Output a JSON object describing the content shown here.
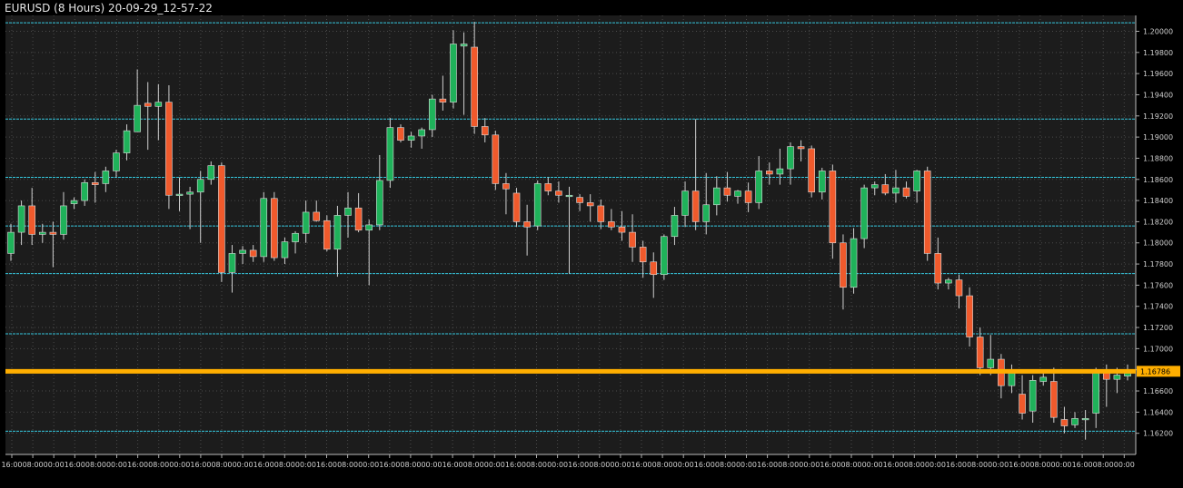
{
  "window": {
    "title": "EURUSD (8 Hours) 20-09-29_12-57-22"
  },
  "colors": {
    "background": "#000000",
    "plot_background": "#1c1c1c",
    "grid": "#4a4a4a",
    "bull": "#1fb25a",
    "bear": "#f05a2c",
    "level_line": "#35c9e0",
    "current_price": "#ffae00"
  },
  "chart_data": {
    "type": "candlestick",
    "title": "EURUSD (8 Hours) 20-09-29_12-57-22",
    "ylim": [
      1.16,
      1.2015
    ],
    "y_ticks": [
      "1.20000",
      "1.19800",
      "1.19600",
      "1.19400",
      "1.19200",
      "1.19000",
      "1.18800",
      "1.18600",
      "1.18400",
      "1.18200",
      "1.18000",
      "1.17800",
      "1.17600",
      "1.17400",
      "1.17200",
      "1.17000",
      "1.16800",
      "1.16600",
      "1.16400",
      "1.16200"
    ],
    "x_ticks": [
      "16:00",
      "08:00",
      "00:00",
      "16:00",
      "08:00",
      "00:00",
      "16:00",
      "08:00",
      "00:00",
      "16:00",
      "08:00",
      "00:00",
      "16:00",
      "08:00",
      "00:00",
      "16:00",
      "08:00",
      "00:00",
      "16:00",
      "08:00",
      "00:00",
      "16:00",
      "08:00",
      "00:00",
      "16:00",
      "08:00",
      "00:00",
      "16:00",
      "08:00",
      "00:00",
      "16:00",
      "08:00",
      "00:00",
      "16:00",
      "08:00",
      "00:00",
      "16:00",
      "08:00",
      "00:00",
      "16:00",
      "08:00",
      "00:00",
      "16:00",
      "08:00",
      "00:00",
      "16:00",
      "08:00",
      "00:00",
      "16:00",
      "08:00",
      "00:00",
      "16:00",
      "08:00",
      "00:00"
    ],
    "horizontal_levels": [
      1.2008,
      1.1917,
      1.1862,
      1.1816,
      1.1771,
      1.1714,
      1.1622
    ],
    "current_price": 1.16786,
    "current_price_label": "1.16786",
    "candles": [
      {
        "o": 1.179,
        "h": 1.1818,
        "l": 1.1783,
        "c": 1.181
      },
      {
        "o": 1.181,
        "h": 1.184,
        "l": 1.1798,
        "c": 1.1835
      },
      {
        "o": 1.1835,
        "h": 1.1852,
        "l": 1.1798,
        "c": 1.1808
      },
      {
        "o": 1.1808,
        "h": 1.1818,
        "l": 1.18,
        "c": 1.181
      },
      {
        "o": 1.181,
        "h": 1.182,
        "l": 1.1777,
        "c": 1.1808
      },
      {
        "o": 1.1808,
        "h": 1.1848,
        "l": 1.1803,
        "c": 1.1835
      },
      {
        "o": 1.1837,
        "h": 1.1843,
        "l": 1.1832,
        "c": 1.184
      },
      {
        "o": 1.184,
        "h": 1.186,
        "l": 1.1835,
        "c": 1.1857
      },
      {
        "o": 1.1857,
        "h": 1.1867,
        "l": 1.1838,
        "c": 1.1855
      },
      {
        "o": 1.1856,
        "h": 1.1872,
        "l": 1.1848,
        "c": 1.1868
      },
      {
        "o": 1.1868,
        "h": 1.1888,
        "l": 1.1862,
        "c": 1.1885
      },
      {
        "o": 1.1885,
        "h": 1.1912,
        "l": 1.1878,
        "c": 1.1906
      },
      {
        "o": 1.1905,
        "h": 1.1964,
        "l": 1.1905,
        "c": 1.193
      },
      {
        "o": 1.1932,
        "h": 1.1952,
        "l": 1.1888,
        "c": 1.1929
      },
      {
        "o": 1.1929,
        "h": 1.195,
        "l": 1.1897,
        "c": 1.1933
      },
      {
        "o": 1.1933,
        "h": 1.1949,
        "l": 1.1832,
        "c": 1.1845
      },
      {
        "o": 1.1845,
        "h": 1.1862,
        "l": 1.183,
        "c": 1.1846
      },
      {
        "o": 1.1846,
        "h": 1.1853,
        "l": 1.1813,
        "c": 1.1848
      },
      {
        "o": 1.1848,
        "h": 1.1868,
        "l": 1.18,
        "c": 1.186
      },
      {
        "o": 1.186,
        "h": 1.1877,
        "l": 1.1855,
        "c": 1.1873
      },
      {
        "o": 1.1873,
        "h": 1.1876,
        "l": 1.1763,
        "c": 1.1772
      },
      {
        "o": 1.1772,
        "h": 1.1798,
        "l": 1.1753,
        "c": 1.179
      },
      {
        "o": 1.179,
        "h": 1.1797,
        "l": 1.178,
        "c": 1.1793
      },
      {
        "o": 1.1793,
        "h": 1.1798,
        "l": 1.1782,
        "c": 1.1787
      },
      {
        "o": 1.1787,
        "h": 1.1848,
        "l": 1.1782,
        "c": 1.1842
      },
      {
        "o": 1.1842,
        "h": 1.1848,
        "l": 1.1783,
        "c": 1.1786
      },
      {
        "o": 1.1786,
        "h": 1.1805,
        "l": 1.178,
        "c": 1.1801
      },
      {
        "o": 1.1801,
        "h": 1.1811,
        "l": 1.179,
        "c": 1.1809
      },
      {
        "o": 1.1809,
        "h": 1.184,
        "l": 1.18,
        "c": 1.1829
      },
      {
        "o": 1.1829,
        "h": 1.184,
        "l": 1.182,
        "c": 1.1821
      },
      {
        "o": 1.1821,
        "h": 1.1826,
        "l": 1.1792,
        "c": 1.1794
      },
      {
        "o": 1.1794,
        "h": 1.1835,
        "l": 1.1768,
        "c": 1.1826
      },
      {
        "o": 1.1826,
        "h": 1.1848,
        "l": 1.1805,
        "c": 1.1833
      },
      {
        "o": 1.1833,
        "h": 1.1847,
        "l": 1.181,
        "c": 1.1812
      },
      {
        "o": 1.1812,
        "h": 1.1822,
        "l": 1.176,
        "c": 1.1817
      },
      {
        "o": 1.1817,
        "h": 1.1883,
        "l": 1.1812,
        "c": 1.1859
      },
      {
        "o": 1.1859,
        "h": 1.1918,
        "l": 1.1852,
        "c": 1.1909
      },
      {
        "o": 1.1909,
        "h": 1.1912,
        "l": 1.1895,
        "c": 1.1897
      },
      {
        "o": 1.1897,
        "h": 1.1905,
        "l": 1.189,
        "c": 1.1901
      },
      {
        "o": 1.1901,
        "h": 1.1909,
        "l": 1.1889,
        "c": 1.1907
      },
      {
        "o": 1.1907,
        "h": 1.194,
        "l": 1.19,
        "c": 1.1936
      },
      {
        "o": 1.1936,
        "h": 1.1958,
        "l": 1.1925,
        "c": 1.1933
      },
      {
        "o": 1.1933,
        "h": 1.2001,
        "l": 1.1927,
        "c": 1.1988
      },
      {
        "o": 1.1986,
        "h": 1.1999,
        "l": 1.1921,
        "c": 1.1988
      },
      {
        "o": 1.1985,
        "h": 1.2009,
        "l": 1.1903,
        "c": 1.191
      },
      {
        "o": 1.191,
        "h": 1.1918,
        "l": 1.1895,
        "c": 1.1902
      },
      {
        "o": 1.1902,
        "h": 1.1906,
        "l": 1.185,
        "c": 1.1856
      },
      {
        "o": 1.1856,
        "h": 1.1866,
        "l": 1.1827,
        "c": 1.1851
      },
      {
        "o": 1.1847,
        "h": 1.1852,
        "l": 1.1815,
        "c": 1.182
      },
      {
        "o": 1.182,
        "h": 1.1836,
        "l": 1.1788,
        "c": 1.1815
      },
      {
        "o": 1.1816,
        "h": 1.1859,
        "l": 1.1812,
        "c": 1.1856
      },
      {
        "o": 1.1856,
        "h": 1.1862,
        "l": 1.1845,
        "c": 1.1849
      },
      {
        "o": 1.1849,
        "h": 1.1858,
        "l": 1.1838,
        "c": 1.1845
      },
      {
        "o": 1.1845,
        "h": 1.1853,
        "l": 1.1771,
        "c": 1.1845
      },
      {
        "o": 1.1843,
        "h": 1.1846,
        "l": 1.183,
        "c": 1.1838
      },
      {
        "o": 1.1838,
        "h": 1.1846,
        "l": 1.182,
        "c": 1.1835
      },
      {
        "o": 1.1835,
        "h": 1.1841,
        "l": 1.1813,
        "c": 1.182
      },
      {
        "o": 1.182,
        "h": 1.1832,
        "l": 1.1812,
        "c": 1.1815
      },
      {
        "o": 1.1815,
        "h": 1.183,
        "l": 1.1802,
        "c": 1.181
      },
      {
        "o": 1.181,
        "h": 1.1827,
        "l": 1.1782,
        "c": 1.1796
      },
      {
        "o": 1.1796,
        "h": 1.1802,
        "l": 1.1767,
        "c": 1.1782
      },
      {
        "o": 1.1782,
        "h": 1.1791,
        "l": 1.1748,
        "c": 1.177
      },
      {
        "o": 1.177,
        "h": 1.1808,
        "l": 1.1765,
        "c": 1.1806
      },
      {
        "o": 1.1806,
        "h": 1.1834,
        "l": 1.1798,
        "c": 1.1826
      },
      {
        "o": 1.1826,
        "h": 1.1858,
        "l": 1.1815,
        "c": 1.1849
      },
      {
        "o": 1.1849,
        "h": 1.1917,
        "l": 1.1812,
        "c": 1.182
      },
      {
        "o": 1.182,
        "h": 1.1866,
        "l": 1.1808,
        "c": 1.1836
      },
      {
        "o": 1.1836,
        "h": 1.1863,
        "l": 1.1826,
        "c": 1.1852
      },
      {
        "o": 1.1852,
        "h": 1.1867,
        "l": 1.1839,
        "c": 1.1845
      },
      {
        "o": 1.1844,
        "h": 1.185,
        "l": 1.1837,
        "c": 1.1849
      },
      {
        "o": 1.1849,
        "h": 1.1857,
        "l": 1.1829,
        "c": 1.1838
      },
      {
        "o": 1.1838,
        "h": 1.1882,
        "l": 1.1832,
        "c": 1.1868
      },
      {
        "o": 1.1868,
        "h": 1.1876,
        "l": 1.1855,
        "c": 1.1865
      },
      {
        "o": 1.1865,
        "h": 1.1889,
        "l": 1.1855,
        "c": 1.187
      },
      {
        "o": 1.187,
        "h": 1.1895,
        "l": 1.1855,
        "c": 1.1891
      },
      {
        "o": 1.1891,
        "h": 1.1897,
        "l": 1.1877,
        "c": 1.1889
      },
      {
        "o": 1.1889,
        "h": 1.1892,
        "l": 1.1843,
        "c": 1.1848
      },
      {
        "o": 1.1848,
        "h": 1.1871,
        "l": 1.1841,
        "c": 1.1868
      },
      {
        "o": 1.1868,
        "h": 1.1874,
        "l": 1.1785,
        "c": 1.18
      },
      {
        "o": 1.18,
        "h": 1.1808,
        "l": 1.1737,
        "c": 1.1758
      },
      {
        "o": 1.1758,
        "h": 1.1814,
        "l": 1.1752,
        "c": 1.1804
      },
      {
        "o": 1.1804,
        "h": 1.1855,
        "l": 1.1795,
        "c": 1.1852
      },
      {
        "o": 1.1852,
        "h": 1.1858,
        "l": 1.1845,
        "c": 1.1855
      },
      {
        "o": 1.1855,
        "h": 1.1865,
        "l": 1.1845,
        "c": 1.1847
      },
      {
        "o": 1.1847,
        "h": 1.1869,
        "l": 1.1838,
        "c": 1.1852
      },
      {
        "o": 1.1852,
        "h": 1.1858,
        "l": 1.1842,
        "c": 1.1844
      },
      {
        "o": 1.1849,
        "h": 1.1869,
        "l": 1.1838,
        "c": 1.1868
      },
      {
        "o": 1.1868,
        "h": 1.1872,
        "l": 1.1783,
        "c": 1.179
      },
      {
        "o": 1.179,
        "h": 1.1805,
        "l": 1.1756,
        "c": 1.1762
      },
      {
        "o": 1.1762,
        "h": 1.1767,
        "l": 1.1756,
        "c": 1.1765
      },
      {
        "o": 1.1765,
        "h": 1.177,
        "l": 1.1738,
        "c": 1.175
      },
      {
        "o": 1.175,
        "h": 1.1758,
        "l": 1.1702,
        "c": 1.1711
      },
      {
        "o": 1.1711,
        "h": 1.172,
        "l": 1.1675,
        "c": 1.1682
      },
      {
        "o": 1.1682,
        "h": 1.1713,
        "l": 1.1675,
        "c": 1.169
      },
      {
        "o": 1.169,
        "h": 1.1695,
        "l": 1.1653,
        "c": 1.1665
      },
      {
        "o": 1.1665,
        "h": 1.1685,
        "l": 1.1658,
        "c": 1.1677
      },
      {
        "o": 1.1657,
        "h": 1.1675,
        "l": 1.1633,
        "c": 1.1639
      },
      {
        "o": 1.1641,
        "h": 1.1675,
        "l": 1.163,
        "c": 1.167
      },
      {
        "o": 1.1669,
        "h": 1.1677,
        "l": 1.1665,
        "c": 1.1673
      },
      {
        "o": 1.1669,
        "h": 1.1682,
        "l": 1.163,
        "c": 1.1635
      },
      {
        "o": 1.1633,
        "h": 1.1645,
        "l": 1.162,
        "c": 1.1627
      },
      {
        "o": 1.1628,
        "h": 1.164,
        "l": 1.1625,
        "c": 1.1634
      },
      {
        "o": 1.1634,
        "h": 1.1642,
        "l": 1.1614,
        "c": 1.1634
      },
      {
        "o": 1.1639,
        "h": 1.1682,
        "l": 1.1625,
        "c": 1.1677
      },
      {
        "o": 1.1677,
        "h": 1.1685,
        "l": 1.1645,
        "c": 1.1671
      },
      {
        "o": 1.1671,
        "h": 1.1682,
        "l": 1.1658,
        "c": 1.1675
      },
      {
        "o": 1.1674,
        "h": 1.1685,
        "l": 1.167,
        "c": 1.168
      }
    ]
  }
}
